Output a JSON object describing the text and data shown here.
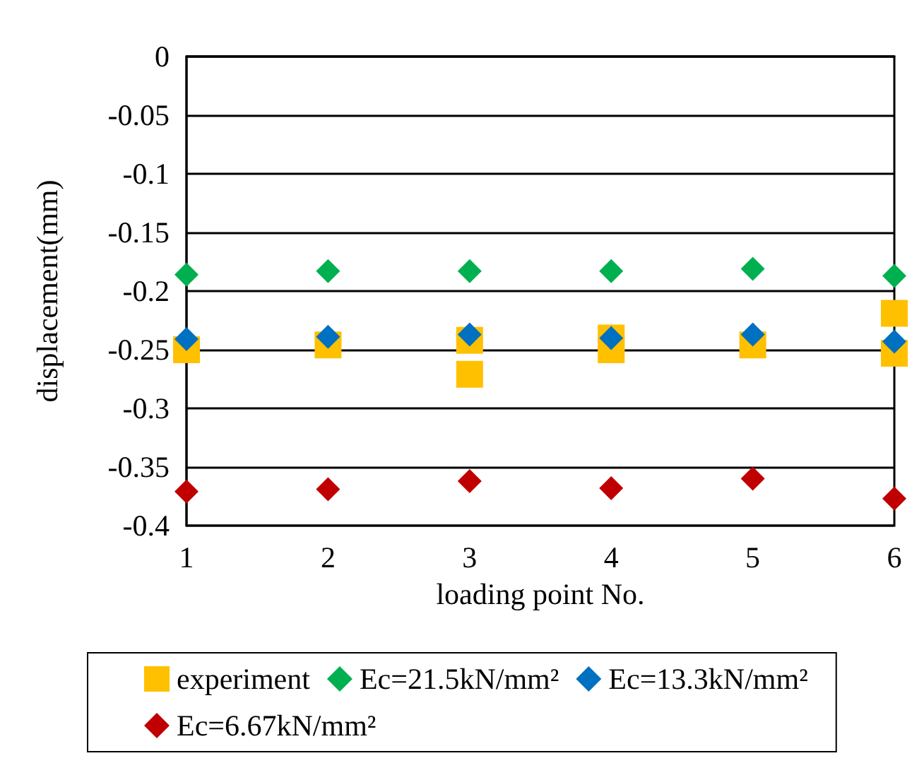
{
  "chart_data": {
    "type": "scatter",
    "xlabel": "loading point No.",
    "ylabel": "displacement(mm)",
    "xlim": [
      1,
      6
    ],
    "xticks": [
      1,
      2,
      3,
      4,
      5,
      6
    ],
    "ylim": [
      -0.4,
      0
    ],
    "yticks": [
      -0.4,
      -0.35,
      -0.3,
      -0.25,
      -0.2,
      -0.15,
      -0.1,
      -0.05,
      0
    ],
    "grid": "y",
    "legend": "bottom",
    "series": [
      {
        "name": "experiment",
        "color": "#ffc000",
        "marker": "square",
        "x": [
          1,
          2,
          3,
          3,
          4,
          4,
          5,
          6,
          6
        ],
        "values": [
          -0.25,
          -0.246,
          -0.242,
          -0.271,
          -0.24,
          -0.25,
          -0.246,
          -0.219,
          -0.253
        ]
      },
      {
        "name": "Ec=21.5kN/mm²",
        "color": "#00b050",
        "marker": "diamond",
        "x": [
          1,
          2,
          3,
          4,
          5,
          6
        ],
        "values": [
          -0.186,
          -0.183,
          -0.183,
          -0.183,
          -0.181,
          -0.187
        ]
      },
      {
        "name": "Ec=13.3kN/mm²",
        "color": "#0070c0",
        "marker": "diamond",
        "x": [
          1,
          2,
          3,
          4,
          5,
          6
        ],
        "values": [
          -0.241,
          -0.239,
          -0.237,
          -0.24,
          -0.237,
          -0.243
        ]
      },
      {
        "name": "Ec=6.67kN/mm²",
        "color": "#c00000",
        "marker": "diamond",
        "x": [
          1,
          2,
          3,
          4,
          5,
          6
        ],
        "values": [
          -0.371,
          -0.369,
          -0.362,
          -0.368,
          -0.36,
          -0.377
        ]
      }
    ]
  }
}
